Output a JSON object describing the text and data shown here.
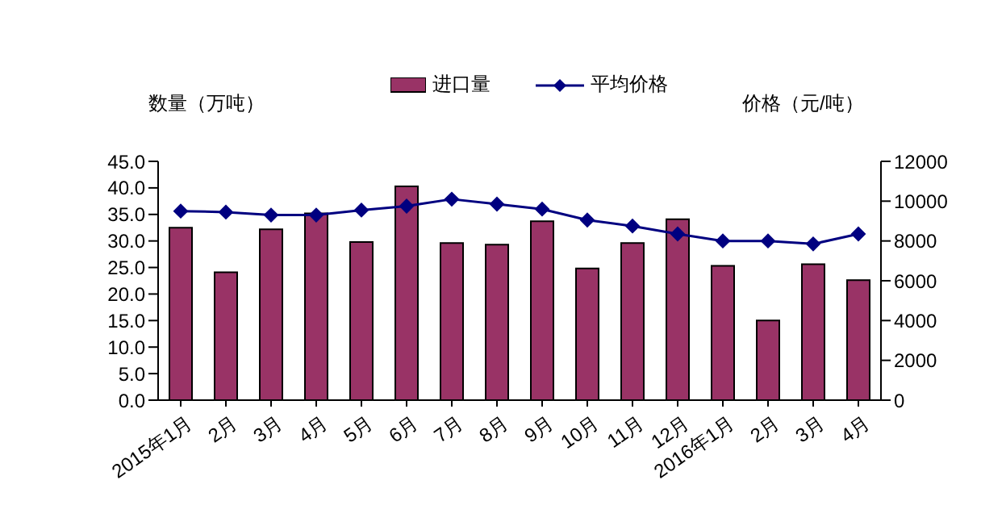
{
  "chart_data": {
    "type": "bar",
    "categories": [
      "2015年1月",
      "2月",
      "3月",
      "4月",
      "5月",
      "6月",
      "7月",
      "8月",
      "9月",
      "10月",
      "11月",
      "12月",
      "2016年1月",
      "2月",
      "3月",
      "4月"
    ],
    "ylabel": "数量（万吨）",
    "y2label": "价格（元/吨）",
    "series": [
      {
        "name": "进口量",
        "color": "#993366",
        "values": [
          32.5,
          24.1,
          32.2,
          35.2,
          29.8,
          40.3,
          29.6,
          29.3,
          33.7,
          24.8,
          29.6,
          34.1,
          25.3,
          15.0,
          25.6,
          22.6
        ]
      },
      {
        "name": "平均价格",
        "type": "line",
        "axis": "y2",
        "color": "#000080",
        "marker": "diamond",
        "values": [
          9500,
          9450,
          9300,
          9300,
          9550,
          9750,
          10100,
          9850,
          9600,
          9050,
          8750,
          8350,
          8000,
          8000,
          7850,
          8350
        ]
      }
    ],
    "ylim": [
      0,
      45
    ],
    "yticks": [
      {
        "value": 0,
        "label": "0.0"
      },
      {
        "value": 5,
        "label": "5.0"
      },
      {
        "value": 10,
        "label": "10.0"
      },
      {
        "value": 15,
        "label": "15.0"
      },
      {
        "value": 20,
        "label": "20.0"
      },
      {
        "value": 25,
        "label": "25.0"
      },
      {
        "value": 30,
        "label": "30.0"
      },
      {
        "value": 35,
        "label": "35.0"
      },
      {
        "value": 40,
        "label": "40.0"
      },
      {
        "value": 45,
        "label": "45.0"
      }
    ],
    "y2lim": [
      0,
      12000
    ],
    "y2ticks": [
      0,
      2000,
      4000,
      6000,
      8000,
      10000,
      12000
    ],
    "legend": "top",
    "grid": false
  }
}
